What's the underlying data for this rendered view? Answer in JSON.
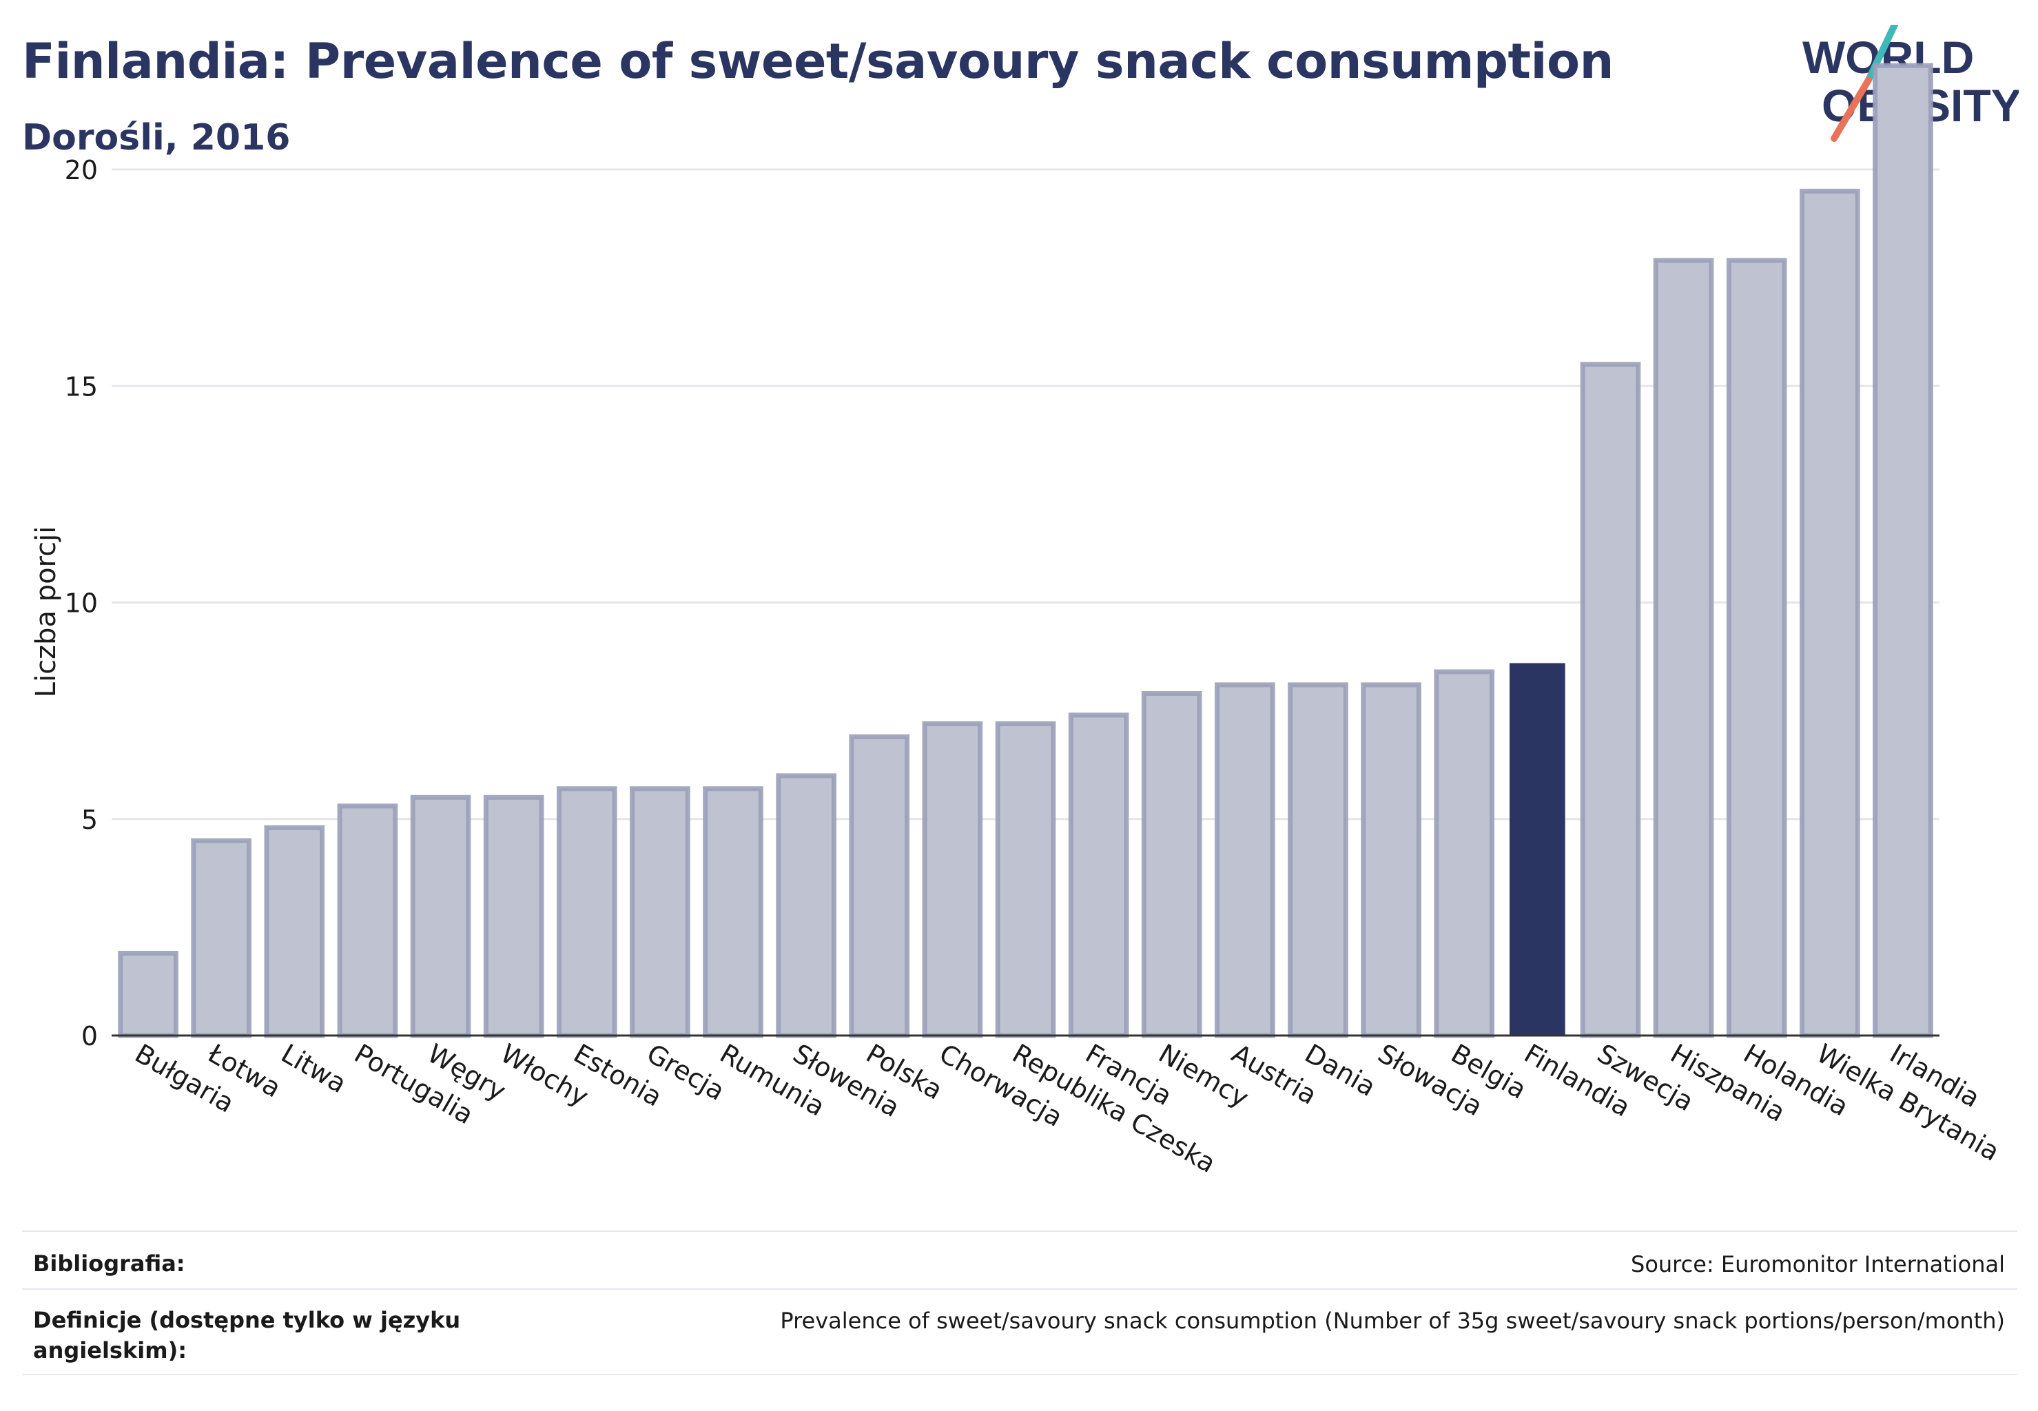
{
  "header": {
    "title": "Finlandia: Prevalence of sweet/savoury snack consumption",
    "subtitle": "Dorośli, 2016"
  },
  "logo": {
    "line1": "WORLD",
    "line2": "OBESITY",
    "accent_teal": "#3fb8b8",
    "accent_red": "#e8735a",
    "text_color": "#2b3562"
  },
  "colors": {
    "bar_default": "#bfc3d1",
    "bar_default_stroke": "#9aa0b8",
    "bar_highlight": "#2b3562",
    "grid": "#e6e6ea",
    "axis": "#333333"
  },
  "chart_data": {
    "type": "bar",
    "title": "Finlandia: Prevalence of sweet/savoury snack consumption",
    "subtitle": "Dorośli, 2016",
    "xlabel": "",
    "ylabel": "Liczba porcji",
    "ylim": [
      0,
      23
    ],
    "yticks": [
      0,
      5,
      10,
      15,
      20
    ],
    "grid": true,
    "highlight": "Finlandia",
    "categories": [
      "Bułgaria",
      "Łotwa",
      "Litwa",
      "Portugalia",
      "Węgry",
      "Włochy",
      "Estonia",
      "Grecja",
      "Rumunia",
      "Słowenia",
      "Polska",
      "Chorwacja",
      "Republika Czeska",
      "Francja",
      "Niemcy",
      "Austria",
      "Dania",
      "Słowacja",
      "Belgia",
      "Finlandia",
      "Szwecja",
      "Hiszpania",
      "Holandia",
      "Wielka Brytania",
      "Irlandia"
    ],
    "values": [
      1.9,
      4.5,
      4.8,
      5.3,
      5.5,
      5.5,
      5.7,
      5.7,
      5.7,
      6.0,
      6.9,
      7.2,
      7.2,
      7.4,
      7.9,
      8.1,
      8.1,
      8.1,
      8.4,
      8.6,
      15.5,
      17.9,
      17.9,
      19.5,
      22.4
    ]
  },
  "footer": {
    "bibliography_label": "Bibliografia:",
    "bibliography_value": "Source: Euromonitor International",
    "definitions_label": "Definicje (dostępne tylko w języku angielskim):",
    "definitions_value": "Prevalence of sweet/savoury snack consumption (Number of 35g sweet/savoury snack portions/person/month)"
  }
}
